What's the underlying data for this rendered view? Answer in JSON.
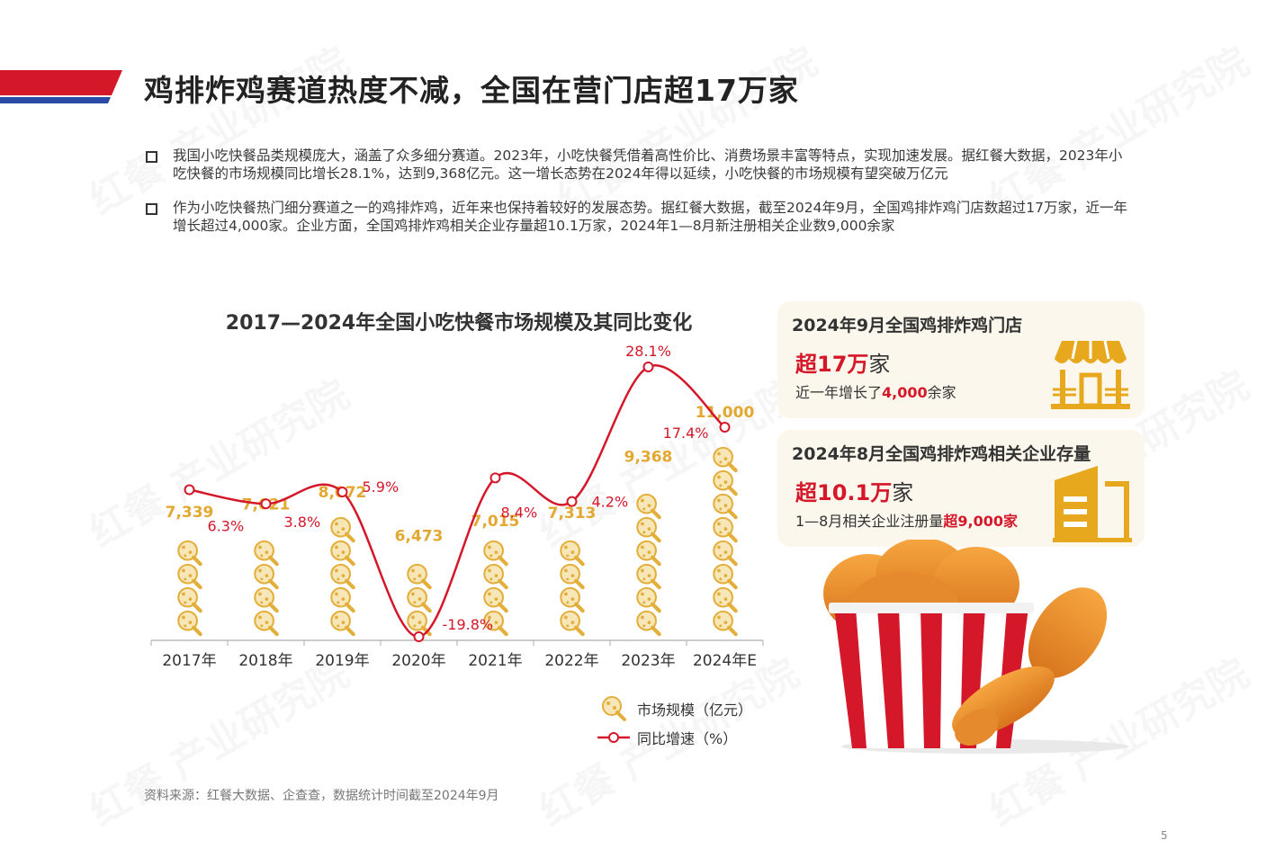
{
  "page": {
    "title": "鸡排炸鸡赛道热度不减，全国在营门店超17万家",
    "page_number": "5",
    "source": "资料来源：红餐大数据、企查查，数据统计时间截至2024年9月",
    "watermark": "红餐 产业研究院"
  },
  "bullets": [
    "我国小吃快餐品类规模庞大，涵盖了众多细分赛道。2023年，小吃快餐凭借着高性价比、消费场景丰富等特点，实现加速发展。据红餐大数据，2023年小吃快餐的市场规模同比增长28.1%，达到9,368亿元。这一增长态势在2024年得以延续，小吃快餐的市场规模有望突破万亿元",
    "作为小吃快餐热门细分赛道之一的鸡排炸鸡，近年来也保持着较好的发展态势。据红餐大数据，截至2024年9月，全国鸡排炸鸡门店数超过17万家，近一年增长超过4,000家。企业方面，全国鸡排炸鸡相关企业存量超10.1万家，2024年1—8月新注册相关企业数9,000余家"
  ],
  "chart_data": {
    "type": "bar",
    "title": "2017—2024年全国小吃快餐市场规模及其同比变化",
    "categories": [
      "2017年",
      "2018年",
      "2019年",
      "2020年",
      "2021年",
      "2022年",
      "2023年",
      "2024年E"
    ],
    "series": [
      {
        "name": "市场规模（亿元）",
        "type": "bar",
        "values": [
          7339,
          7621,
          8072,
          6473,
          7015,
          7313,
          9368,
          11000
        ],
        "labels": [
          "7,339",
          "7,621",
          "8,072",
          "6,473",
          "7,015",
          "7,313",
          "9,368",
          "11,000"
        ],
        "color": "#e8b84a"
      },
      {
        "name": "同比增速（%）",
        "type": "line",
        "values": [
          6.3,
          3.8,
          5.9,
          -19.8,
          8.4,
          4.2,
          28.1,
          17.4
        ],
        "labels": [
          "6.3%",
          "3.8%",
          "5.9%",
          "-19.8%",
          "8.4%",
          "4.2%",
          "28.1%",
          "17.4%"
        ],
        "color": "#d5172a"
      }
    ],
    "legend_position": "bottom-right",
    "grid": false
  },
  "cards": [
    {
      "title": "2024年9月全国鸡排炸鸡门店",
      "big_prefix": "超",
      "big_value": "17万",
      "big_suffix": "家",
      "sub_prefix": "近一年增长了",
      "sub_value": "4,000",
      "sub_suffix": "余家",
      "icon": "storefront-icon"
    },
    {
      "title": "2024年8月全国鸡排炸鸡相关企业存量",
      "big_prefix": "超",
      "big_value": "10.1万",
      "big_suffix": "家",
      "sub_prefix": "1—8月相关企业注册量",
      "sub_value": "超9,000家",
      "sub_suffix": "",
      "icon": "building-icon"
    }
  ],
  "colors": {
    "accent_red": "#d5172a",
    "accent_blue": "#2b4aa6",
    "gold": "#e8b84a",
    "card_bg": "#fbf7ec"
  }
}
